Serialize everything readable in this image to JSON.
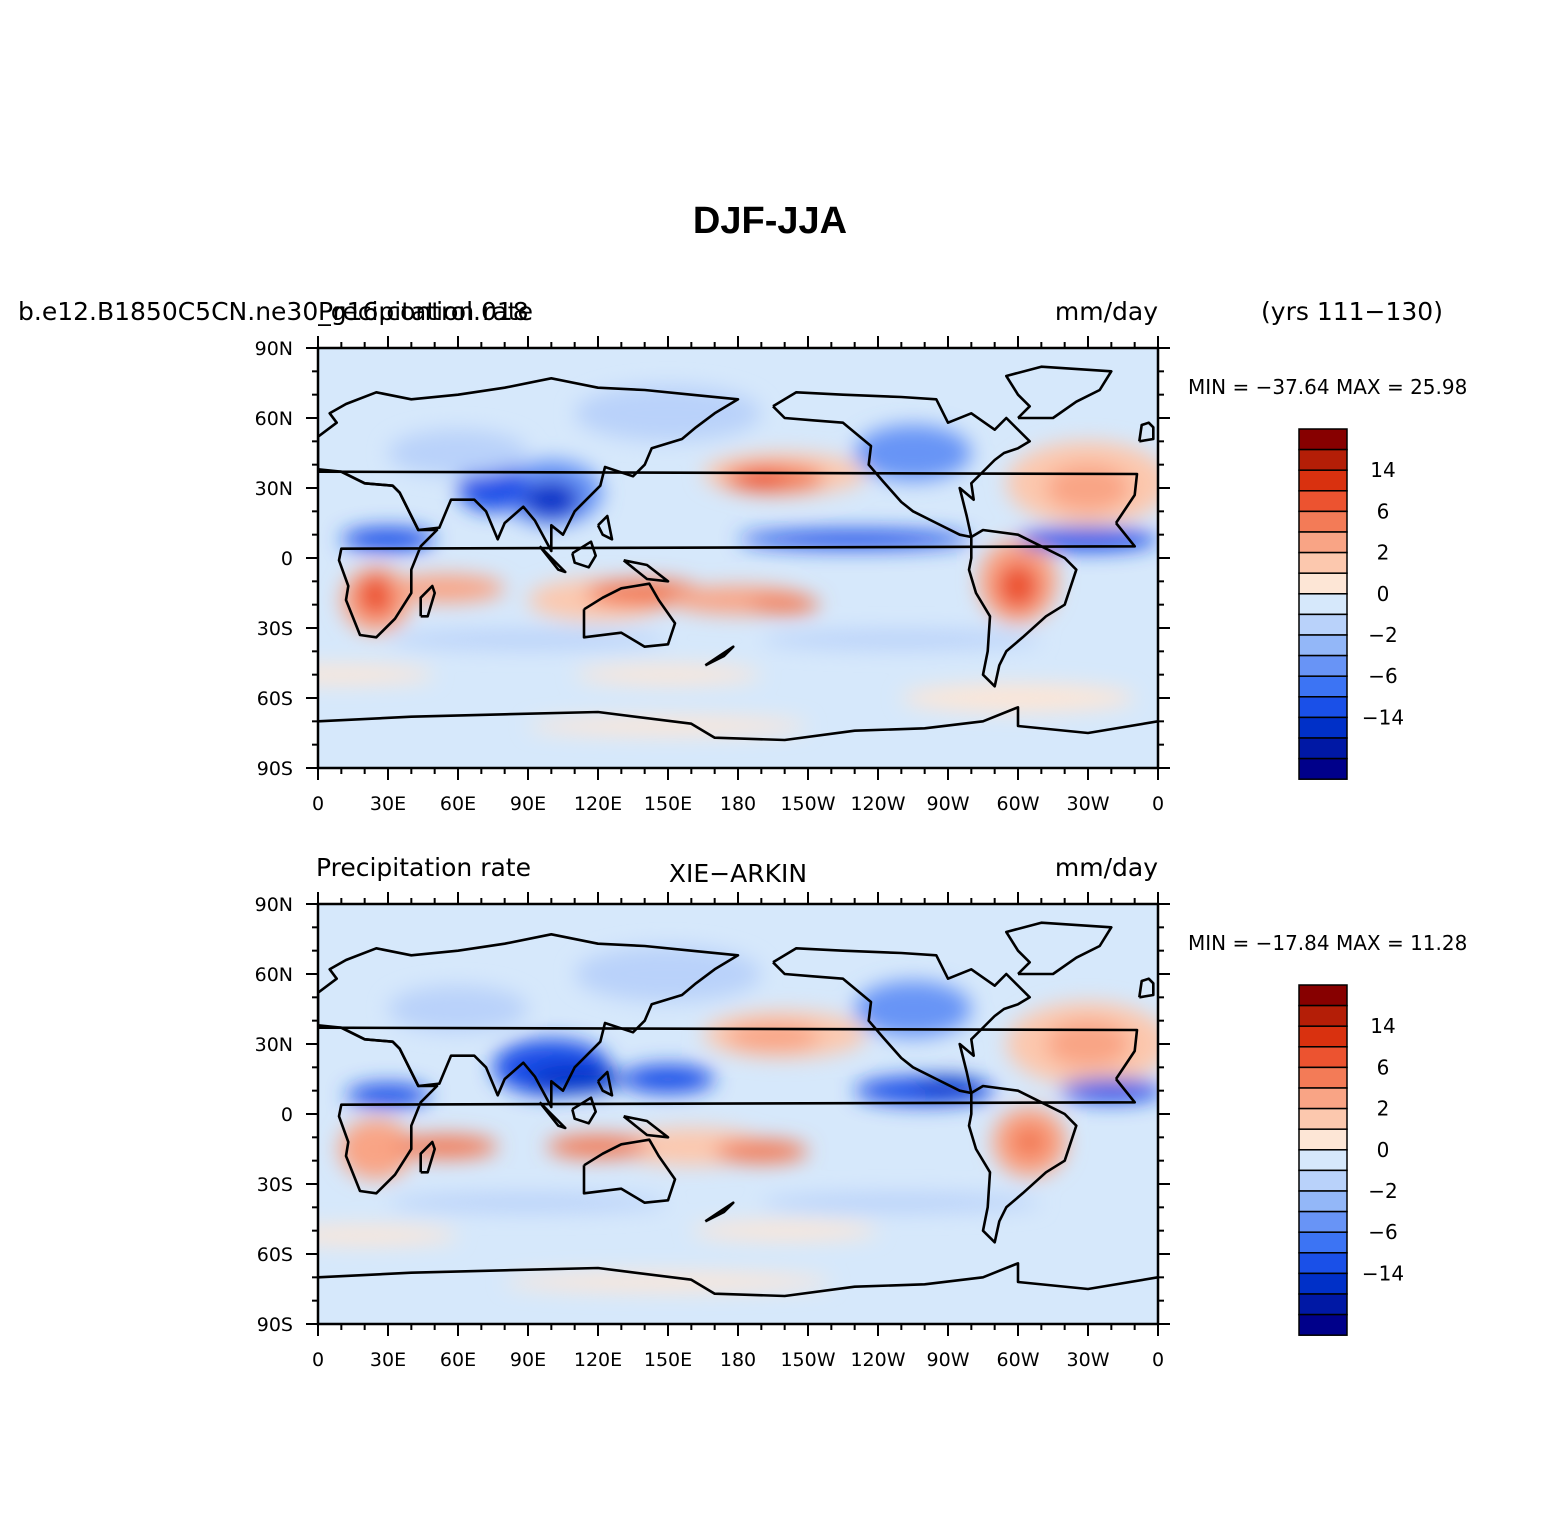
{
  "title": "DJF-JJA",
  "colors": {
    "background": "#ffffff",
    "ocean_base": "#d6e8fb",
    "coast": "#000000",
    "levels": [
      "#00008a",
      "#0018a5",
      "#0030c8",
      "#1a50e8",
      "#3c74f4",
      "#6894f6",
      "#93b7f8",
      "#b9d2fa",
      "#d6e8fb",
      "#fde6d6",
      "#fcc8ae",
      "#f9a485",
      "#f37b57",
      "#ec5330",
      "#d9310f",
      "#b41e07",
      "#870000"
    ]
  },
  "panels": [
    {
      "left_title": "b.e12.B1850C5CN.ne30_g16.control.018",
      "center_title": "Precipitation rate",
      "right_title": "mm/day",
      "extra_title": "(yrs 111−130)",
      "stats": "MIN = −37.64  MAX =   25.98"
    },
    {
      "left_title": "Precipitation rate",
      "center_title": "XIE−ARKIN",
      "right_title": "mm/day",
      "extra_title": "",
      "stats": "MIN = −17.84  MAX =   11.28"
    }
  ],
  "axes": {
    "lon_labels": [
      "0",
      "30E",
      "60E",
      "90E",
      "120E",
      "150E",
      "180",
      "150W",
      "120W",
      "90W",
      "60W",
      "30W",
      "0"
    ],
    "lat_labels": [
      "90N",
      "60N",
      "30N",
      "0",
      "30S",
      "60S",
      "90S"
    ]
  },
  "colorbar": {
    "labels": [
      "14",
      "6",
      "2",
      "0",
      "−2",
      "−6",
      "−14"
    ]
  }
}
